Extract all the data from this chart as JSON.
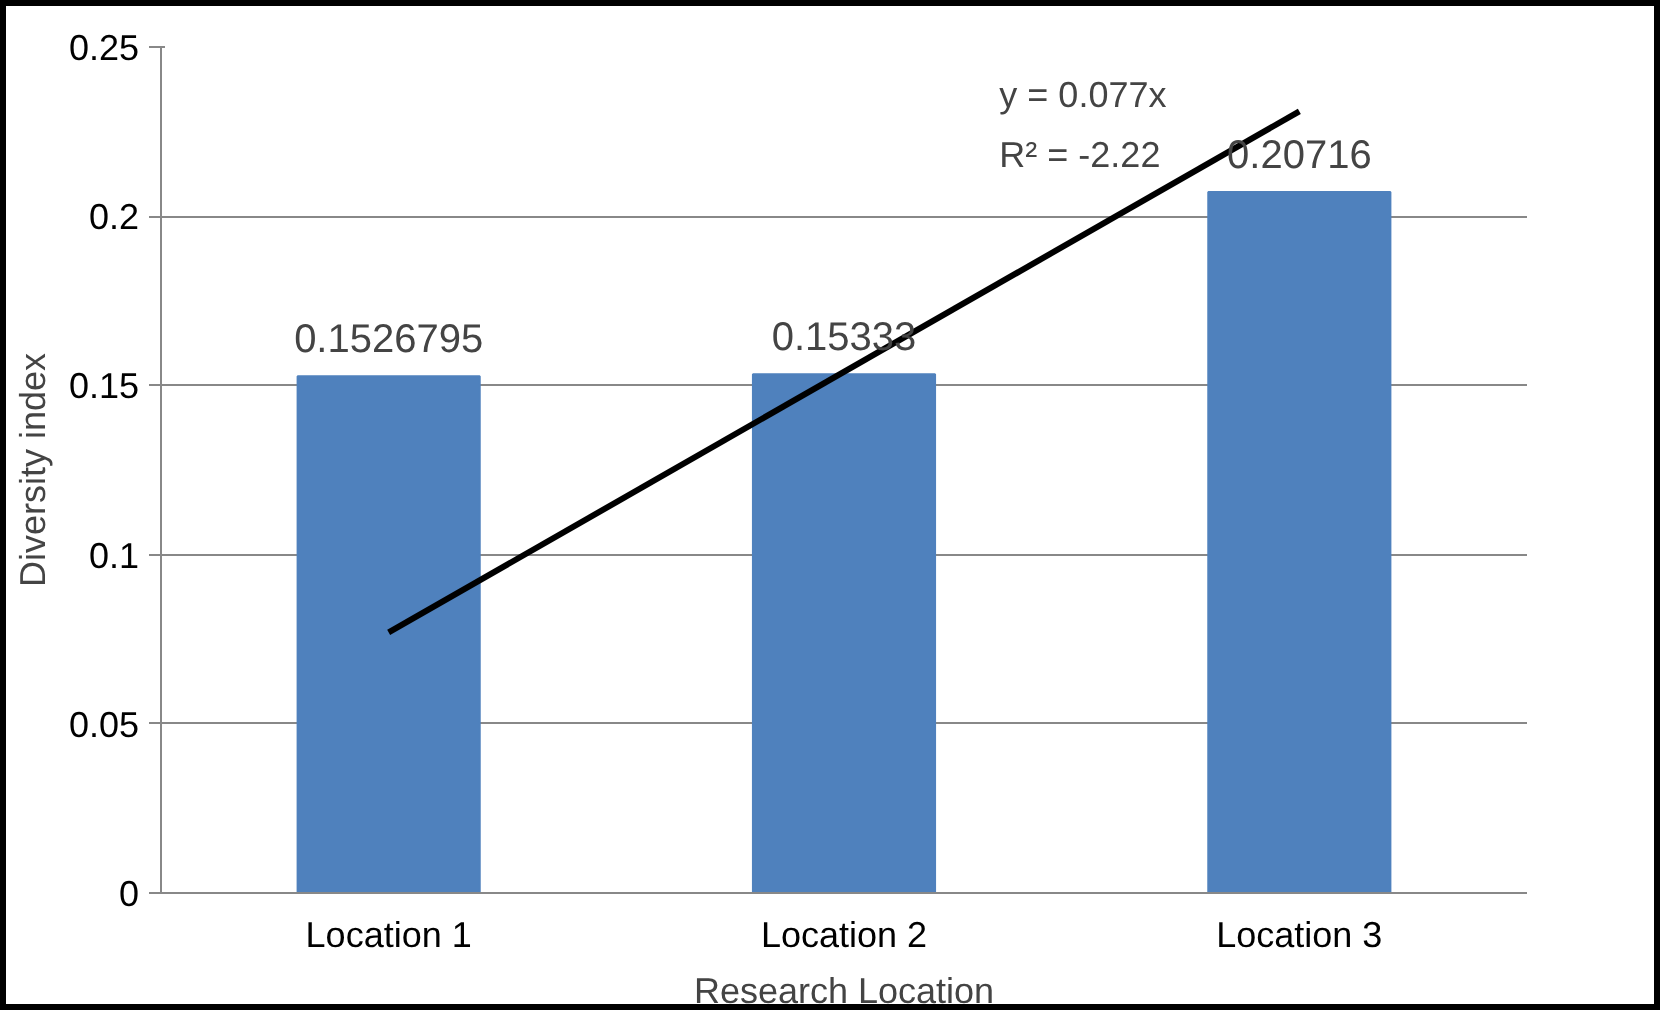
{
  "chart_data": {
    "type": "bar",
    "xlabel": "Research Location",
    "ylabel": "Diversity index",
    "categories": [
      "Location 1",
      "Location 2",
      "Location 3"
    ],
    "series": [
      {
        "color": "#4f81bd",
        "values": [
          0.1526795,
          0.15333,
          0.20716
        ],
        "value_labels": [
          "0.1526795",
          "0.15333",
          "0.20716"
        ]
      },
      {
        "type": "line",
        "color": "#000000",
        "x": [
          "Location 1",
          "Location 3"
        ],
        "values": [
          0.077,
          0.231
        ]
      }
    ],
    "ylim": [
      0,
      0.25
    ],
    "yticks": [
      0,
      0.05,
      0.1,
      0.15,
      0.2,
      0.25
    ],
    "grid": "y",
    "annotations": [
      "y = 0.077x",
      "R² = -2.22"
    ]
  }
}
